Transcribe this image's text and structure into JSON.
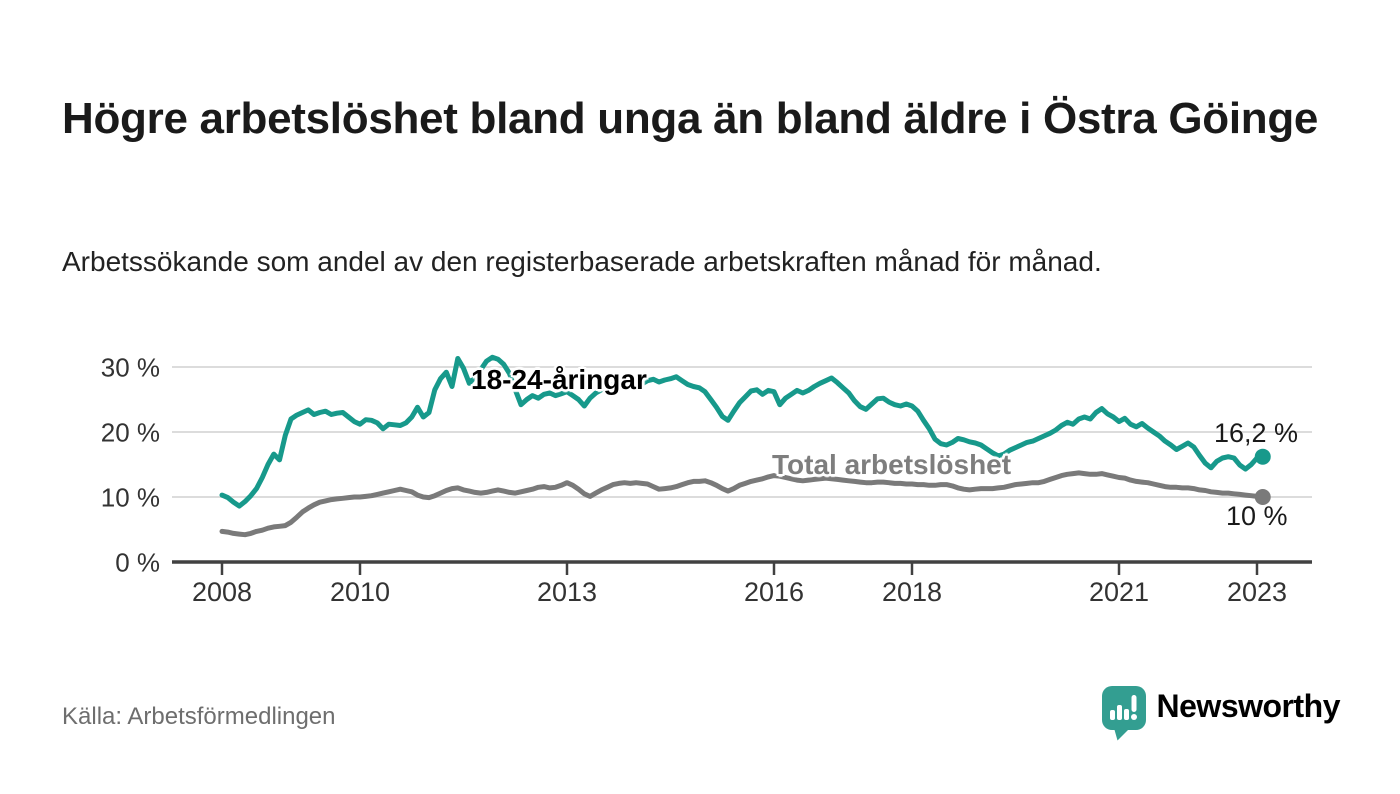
{
  "title": "Högre arbetslöshet bland unga än bland äldre i Östra Göinge",
  "subtitle": "Arbetssökande som andel av den registerbaserade arbetskraften månad för månad.",
  "source": "Källa: Arbetsförmedlingen",
  "brand": {
    "name": "Newsworthy",
    "color": "#339e91"
  },
  "colors": {
    "youth_line": "#17998b",
    "total_line": "#7a7a7a",
    "gridline": "#dcdcdc",
    "axis": "#414141",
    "tick_text": "#333333"
  },
  "chart_data": {
    "type": "line",
    "x_start_year": 2008,
    "x_points_per_year": 12,
    "x_end_label_period": "2023-02",
    "x_tick_years": [
      2008,
      2010,
      2013,
      2016,
      2018,
      2021,
      2023
    ],
    "x_tick_labels": [
      "2008",
      "2010",
      "2013",
      "2016",
      "2018",
      "2021",
      "2023"
    ],
    "y_ticks": [
      0,
      10,
      20,
      30
    ],
    "y_tick_labels": [
      "0 %",
      "10 %",
      "20 %",
      "30 %"
    ],
    "ylim": [
      0,
      33
    ],
    "grid": true,
    "legend_position": "inline-annotations",
    "series": [
      {
        "name": "18-24-åringar",
        "color": "#17998b",
        "end_label": "16,2 %",
        "end_value": 16.2,
        "values": [
          10.3,
          9.9,
          9.2,
          8.6,
          9.3,
          10.2,
          11.3,
          13.0,
          15.0,
          16.6,
          15.7,
          19.5,
          22.0,
          22.6,
          23.0,
          23.4,
          22.7,
          23.0,
          23.2,
          22.7,
          22.9,
          23.0,
          22.3,
          21.6,
          21.2,
          21.9,
          21.8,
          21.4,
          20.5,
          21.2,
          21.1,
          21.0,
          21.4,
          22.3,
          23.8,
          22.3,
          23.0,
          26.5,
          28.2,
          29.2,
          27.0,
          31.3,
          29.8,
          27.5,
          28.5,
          29.6,
          30.9,
          31.5,
          31.2,
          30.4,
          29.0,
          26.5,
          24.2,
          25.0,
          25.6,
          25.2,
          25.8,
          26.0,
          25.6,
          25.9,
          26.2,
          25.6,
          25.0,
          24.0,
          25.2,
          26.0,
          26.5,
          27.0,
          27.3,
          27.0,
          27.4,
          27.8,
          27.8,
          27.4,
          27.9,
          28.1,
          27.7,
          28.0,
          28.2,
          28.5,
          27.9,
          27.3,
          27.0,
          26.8,
          26.2,
          25.0,
          23.8,
          22.4,
          21.8,
          23.2,
          24.5,
          25.4,
          26.3,
          26.5,
          25.8,
          26.4,
          26.2,
          24.2,
          25.2,
          25.8,
          26.4,
          26.0,
          26.4,
          27.0,
          27.5,
          27.9,
          28.3,
          27.6,
          26.8,
          26.0,
          24.8,
          23.9,
          23.5,
          24.3,
          25.1,
          25.2,
          24.6,
          24.2,
          24.0,
          24.3,
          24.0,
          23.2,
          21.8,
          20.5,
          18.9,
          18.2,
          18.0,
          18.4,
          19.0,
          18.8,
          18.5,
          18.3,
          18.0,
          17.4,
          16.8,
          16.3,
          16.6,
          17.2,
          17.6,
          18.0,
          18.4,
          18.6,
          19.0,
          19.4,
          19.8,
          20.3,
          21.0,
          21.5,
          21.2,
          22.0,
          22.3,
          22.0,
          23.0,
          23.6,
          22.8,
          22.3,
          21.6,
          22.1,
          21.2,
          20.8,
          21.3,
          20.6,
          20.0,
          19.4,
          18.6,
          18.0,
          17.3,
          17.8,
          18.3,
          17.7,
          16.4,
          15.2,
          14.5,
          15.5,
          16.0,
          16.2,
          16.0,
          14.9,
          14.3,
          15.0,
          16.0,
          16.2
        ]
      },
      {
        "name": "Total arbetslöshet",
        "color": "#7a7a7a",
        "end_label": "10 %",
        "end_value": 10.0,
        "values": [
          4.7,
          4.6,
          4.4,
          4.3,
          4.2,
          4.4,
          4.7,
          4.9,
          5.2,
          5.4,
          5.5,
          5.6,
          6.1,
          6.9,
          7.7,
          8.3,
          8.8,
          9.2,
          9.4,
          9.6,
          9.7,
          9.8,
          9.9,
          10.0,
          10.0,
          10.1,
          10.2,
          10.4,
          10.6,
          10.8,
          11.0,
          11.2,
          11.0,
          10.8,
          10.3,
          10.0,
          9.9,
          10.2,
          10.6,
          11.0,
          11.3,
          11.4,
          11.1,
          10.9,
          10.7,
          10.6,
          10.7,
          10.9,
          11.1,
          10.9,
          10.7,
          10.6,
          10.8,
          11.0,
          11.2,
          11.5,
          11.6,
          11.4,
          11.5,
          11.8,
          12.2,
          11.8,
          11.2,
          10.5,
          10.1,
          10.6,
          11.1,
          11.5,
          11.9,
          12.1,
          12.2,
          12.1,
          12.2,
          12.1,
          12.0,
          11.6,
          11.2,
          11.3,
          11.4,
          11.6,
          11.9,
          12.2,
          12.4,
          12.4,
          12.5,
          12.2,
          11.8,
          11.3,
          10.9,
          11.3,
          11.8,
          12.1,
          12.4,
          12.6,
          12.8,
          13.1,
          13.3,
          13.2,
          13.0,
          12.8,
          12.6,
          12.5,
          12.6,
          12.7,
          12.8,
          12.9,
          12.8,
          12.7,
          12.6,
          12.5,
          12.4,
          12.3,
          12.2,
          12.2,
          12.3,
          12.3,
          12.2,
          12.1,
          12.1,
          12.0,
          12.0,
          11.9,
          11.9,
          11.8,
          11.8,
          11.9,
          11.9,
          11.7,
          11.4,
          11.2,
          11.1,
          11.2,
          11.3,
          11.3,
          11.3,
          11.4,
          11.5,
          11.7,
          11.9,
          12.0,
          12.1,
          12.2,
          12.2,
          12.4,
          12.7,
          13.0,
          13.3,
          13.5,
          13.6,
          13.7,
          13.6,
          13.5,
          13.5,
          13.6,
          13.4,
          13.2,
          13.0,
          12.9,
          12.6,
          12.4,
          12.3,
          12.2,
          12.0,
          11.8,
          11.6,
          11.5,
          11.5,
          11.4,
          11.4,
          11.3,
          11.1,
          11.0,
          10.8,
          10.7,
          10.6,
          10.6,
          10.5,
          10.4,
          10.3,
          10.2,
          10.1,
          10.0
        ]
      }
    ]
  }
}
